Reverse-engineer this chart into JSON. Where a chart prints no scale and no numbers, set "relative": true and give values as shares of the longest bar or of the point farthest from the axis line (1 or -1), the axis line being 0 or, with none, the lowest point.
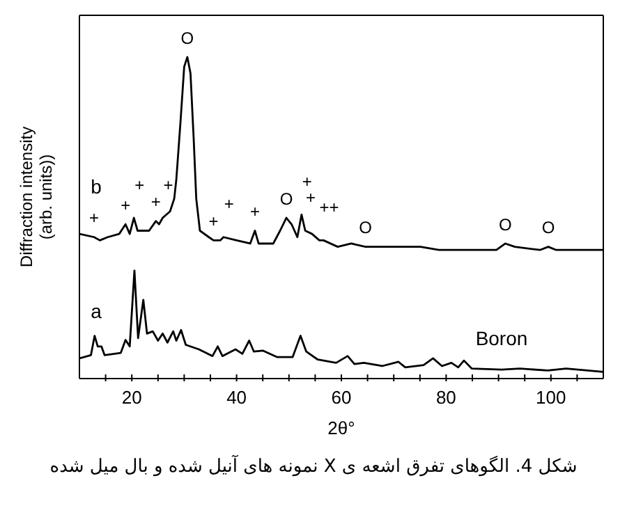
{
  "chart_data": {
    "type": "line",
    "relative": true,
    "xlabel": "2θ°",
    "ylabel": "Diffraction intensity\n(arb. units))",
    "xlim": [
      10,
      110
    ],
    "xticks": [
      {
        "value": 15,
        "label": null
      },
      20,
      {
        "value": 25,
        "label": null
      },
      {
        "value": 30,
        "label": null
      },
      {
        "value": 35,
        "label": null
      },
      40,
      {
        "value": 45,
        "label": null
      },
      {
        "value": 50,
        "label": null
      },
      {
        "value": 55,
        "label": null
      },
      60,
      {
        "value": 65,
        "label": null
      },
      {
        "value": 70,
        "label": null
      },
      {
        "value": 75,
        "label": null
      },
      80,
      {
        "value": 85,
        "label": null
      },
      {
        "value": 90,
        "label": null
      },
      {
        "value": 95,
        "label": null
      },
      100,
      {
        "value": 105,
        "label": null
      }
    ],
    "marker": "none",
    "line_style": "solid",
    "series": [
      {
        "name": "b",
        "color": "#000000",
        "x": [
          10,
          12.8,
          13.9,
          15.4,
          17.6,
          18.8,
          19.6,
          20.4,
          21.1,
          23.3,
          24.6,
          25.2,
          25.9,
          27.3,
          28.1,
          28.5,
          29.3,
          30,
          30.6,
          31.2,
          31.8,
          32.3,
          33,
          34.7,
          35.6,
          36.9,
          37.5,
          40,
          42.6,
          43.5,
          44.2,
          47,
          48.3,
          49.5,
          50.5,
          51.6,
          52.4,
          53.1,
          54.4,
          55.8,
          56.6,
          59.3,
          61.9,
          64.6,
          68.1,
          75.1,
          78.6,
          85.6,
          89.6,
          91.3,
          93.1,
          97.9,
          99.5,
          101,
          110
        ],
        "values": [
          0.45,
          0.44,
          0.43,
          0.44,
          0.45,
          0.48,
          0.45,
          0.5,
          0.46,
          0.46,
          0.49,
          0.48,
          0.5,
          0.52,
          0.56,
          0.62,
          0.8,
          0.97,
          1.0,
          0.95,
          0.75,
          0.56,
          0.46,
          0.44,
          0.43,
          0.43,
          0.44,
          0.43,
          0.42,
          0.46,
          0.42,
          0.42,
          0.46,
          0.5,
          0.48,
          0.44,
          0.51,
          0.46,
          0.45,
          0.43,
          0.43,
          0.41,
          0.42,
          0.41,
          0.41,
          0.41,
          0.4,
          0.4,
          0.4,
          0.42,
          0.41,
          0.4,
          0.41,
          0.4,
          0.4
        ]
      },
      {
        "name": "a",
        "color": "#000000",
        "x": [
          10,
          12.2,
          12.9,
          13.5,
          14.2,
          14.8,
          17.9,
          18.8,
          19.6,
          20.5,
          21.2,
          22.2,
          22.9,
          24,
          25,
          25.9,
          26.8,
          27.9,
          28.5,
          29.4,
          30.3,
          32.8,
          35.4,
          36.4,
          37.3,
          39.8,
          41.1,
          42.4,
          43.3,
          45,
          47.7,
          50.7,
          52.2,
          53.3,
          55.5,
          59,
          61.2,
          62.5,
          64.3,
          67.8,
          70.9,
          72.2,
          75.7,
          77.5,
          79.2,
          81,
          82.3,
          83.4,
          84.9,
          90.6,
          94.1,
          99.4,
          102.9,
          110
        ],
        "values": [
          0.063,
          0.073,
          0.133,
          0.1,
          0.1,
          0.073,
          0.08,
          0.12,
          0.1,
          0.336,
          0.126,
          0.245,
          0.14,
          0.147,
          0.118,
          0.14,
          0.112,
          0.147,
          0.118,
          0.151,
          0.105,
          0.091,
          0.07,
          0.1,
          0.07,
          0.091,
          0.077,
          0.118,
          0.084,
          0.087,
          0.067,
          0.067,
          0.133,
          0.084,
          0.059,
          0.049,
          0.07,
          0.045,
          0.049,
          0.039,
          0.052,
          0.035,
          0.042,
          0.063,
          0.039,
          0.049,
          0.035,
          0.056,
          0.031,
          0.028,
          0.031,
          0.025,
          0.031,
          0.021
        ]
      }
    ],
    "annotations": [
      {
        "text": "O",
        "x": 30.6,
        "y": 1.0
      },
      {
        "text": "+",
        "x": 12.8,
        "y": 0.44
      },
      {
        "text": "+",
        "x": 18.8,
        "y": 0.48
      },
      {
        "text": "+",
        "x": 20.4,
        "y": 0.5
      },
      {
        "text": "+",
        "x": 24.6,
        "y": 0.49
      },
      {
        "text": "+",
        "x": 25.9,
        "y": 0.5
      },
      {
        "text": "+",
        "x": 35.6,
        "y": 0.43
      },
      {
        "text": "+",
        "x": 37.5,
        "y": 0.44
      },
      {
        "text": "+",
        "x": 43.5,
        "y": 0.46
      },
      {
        "text": "O",
        "x": 49.5,
        "y": 0.5
      },
      {
        "text": "+",
        "x": 52.4,
        "y": 0.51
      },
      {
        "text": "+",
        "x": 53.1,
        "y": 0.46
      },
      {
        "text": "++",
        "x": 56.6,
        "y": 0.43
      },
      {
        "text": "O",
        "x": 64.6,
        "y": 0.41
      },
      {
        "text": "O",
        "x": 91.3,
        "y": 0.42
      },
      {
        "text": "O",
        "x": 99.5,
        "y": 0.41
      },
      "Boron",
      "شکل 4. الگوهای تفرق اشعه ی X نمونه های آنیل شده و بال میل شده"
    ]
  }
}
